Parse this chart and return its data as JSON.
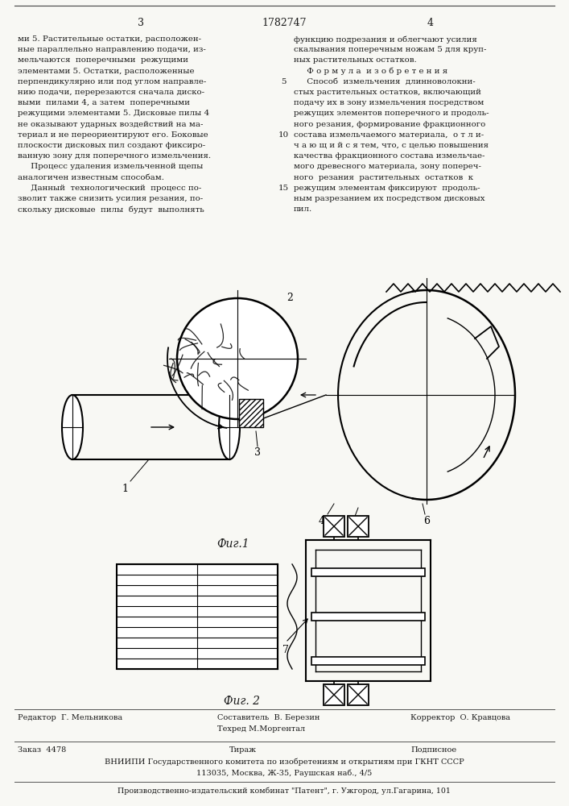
{
  "page_number_left": "3",
  "patent_number": "1782747",
  "page_number_right": "4",
  "left_column_text": [
    "ми 5. Растительные остатки, расположен-",
    "ные параллельно направлению подачи, из-",
    "мельчаются  поперечными  режущими",
    "элементами 5. Остатки, расположенные",
    "перпендикулярно или под углом направле-",
    "нию подачи, перерезаются сначала диско-",
    "выми  пилами 4, а затем  поперечными",
    "режущими элементами 5. Дисковые пилы 4",
    "не оказывают ударных воздействий на ма-",
    "териал и не переориентируют его. Боковые",
    "плоскости дисковых пил создают фиксиро-",
    "ванную зону для поперечного измельчения.",
    "     Процесс удаления измельченной щепы",
    "аналогичен известным способам.",
    "     Данный  технологический  процесс по-",
    "зволит также снизить усилия резания, по-",
    "скольку дисковые  пилы  будут  выполнять"
  ],
  "right_column_text": [
    "функцию подрезания и облегчают усилия",
    "скалывания поперечным ножам 5 для круп-",
    "ных растительных остатков.",
    "     Ф о р м у л а  и з о б р е т е н и я",
    "     Способ  измельчения  длинноволокни-",
    "стых растительных остатков, включающий",
    "подачу их в зону измельчения посредством",
    "режущих элементов поперечного и продоль-",
    "ного резания, формирование фракционного",
    "состава измельчаемого материала,  о т л и-",
    "ч а ю щ и й с я тем, что, с целью повышения",
    "качества фракционного состава измельчае-",
    "мого древесного материала, зону попереч-",
    "ного  резания  растительных  остатков  к",
    "режущим элементам фиксируют  продоль-",
    "ным разрезанием их посредством дисковых",
    "пил."
  ],
  "line_numbers_text": [
    "5",
    "10",
    "15"
  ],
  "line_numbers_rows": [
    4,
    9,
    14
  ],
  "fig1_label": "Фиг.1",
  "fig2_label": "Фиг. 2",
  "editor_line": "Редактор  Г. Мельникова",
  "composer_line": "Составитель  В. Березин",
  "techred_line": "Техред М.Моргентал",
  "corrector_line": "Корректор  О. Кравцова",
  "order_text": "Заказ  4478",
  "tirazh_text": "Тираж",
  "podpisnoe_text": "Подписное",
  "vniip_line": "ВНИИПИ Государственного комитета по изобретениям и открытиям при ГКНТ СССР",
  "address_line": "113035, Москва, Ж-35, Раушская наб., 4/5",
  "plant_line": "Производственно-издательский комбинат \"Патент\", г. Ужгород, ул.Гагарина, 101",
  "bg_color": "#f8f8f4",
  "text_color": "#1a1a1a"
}
